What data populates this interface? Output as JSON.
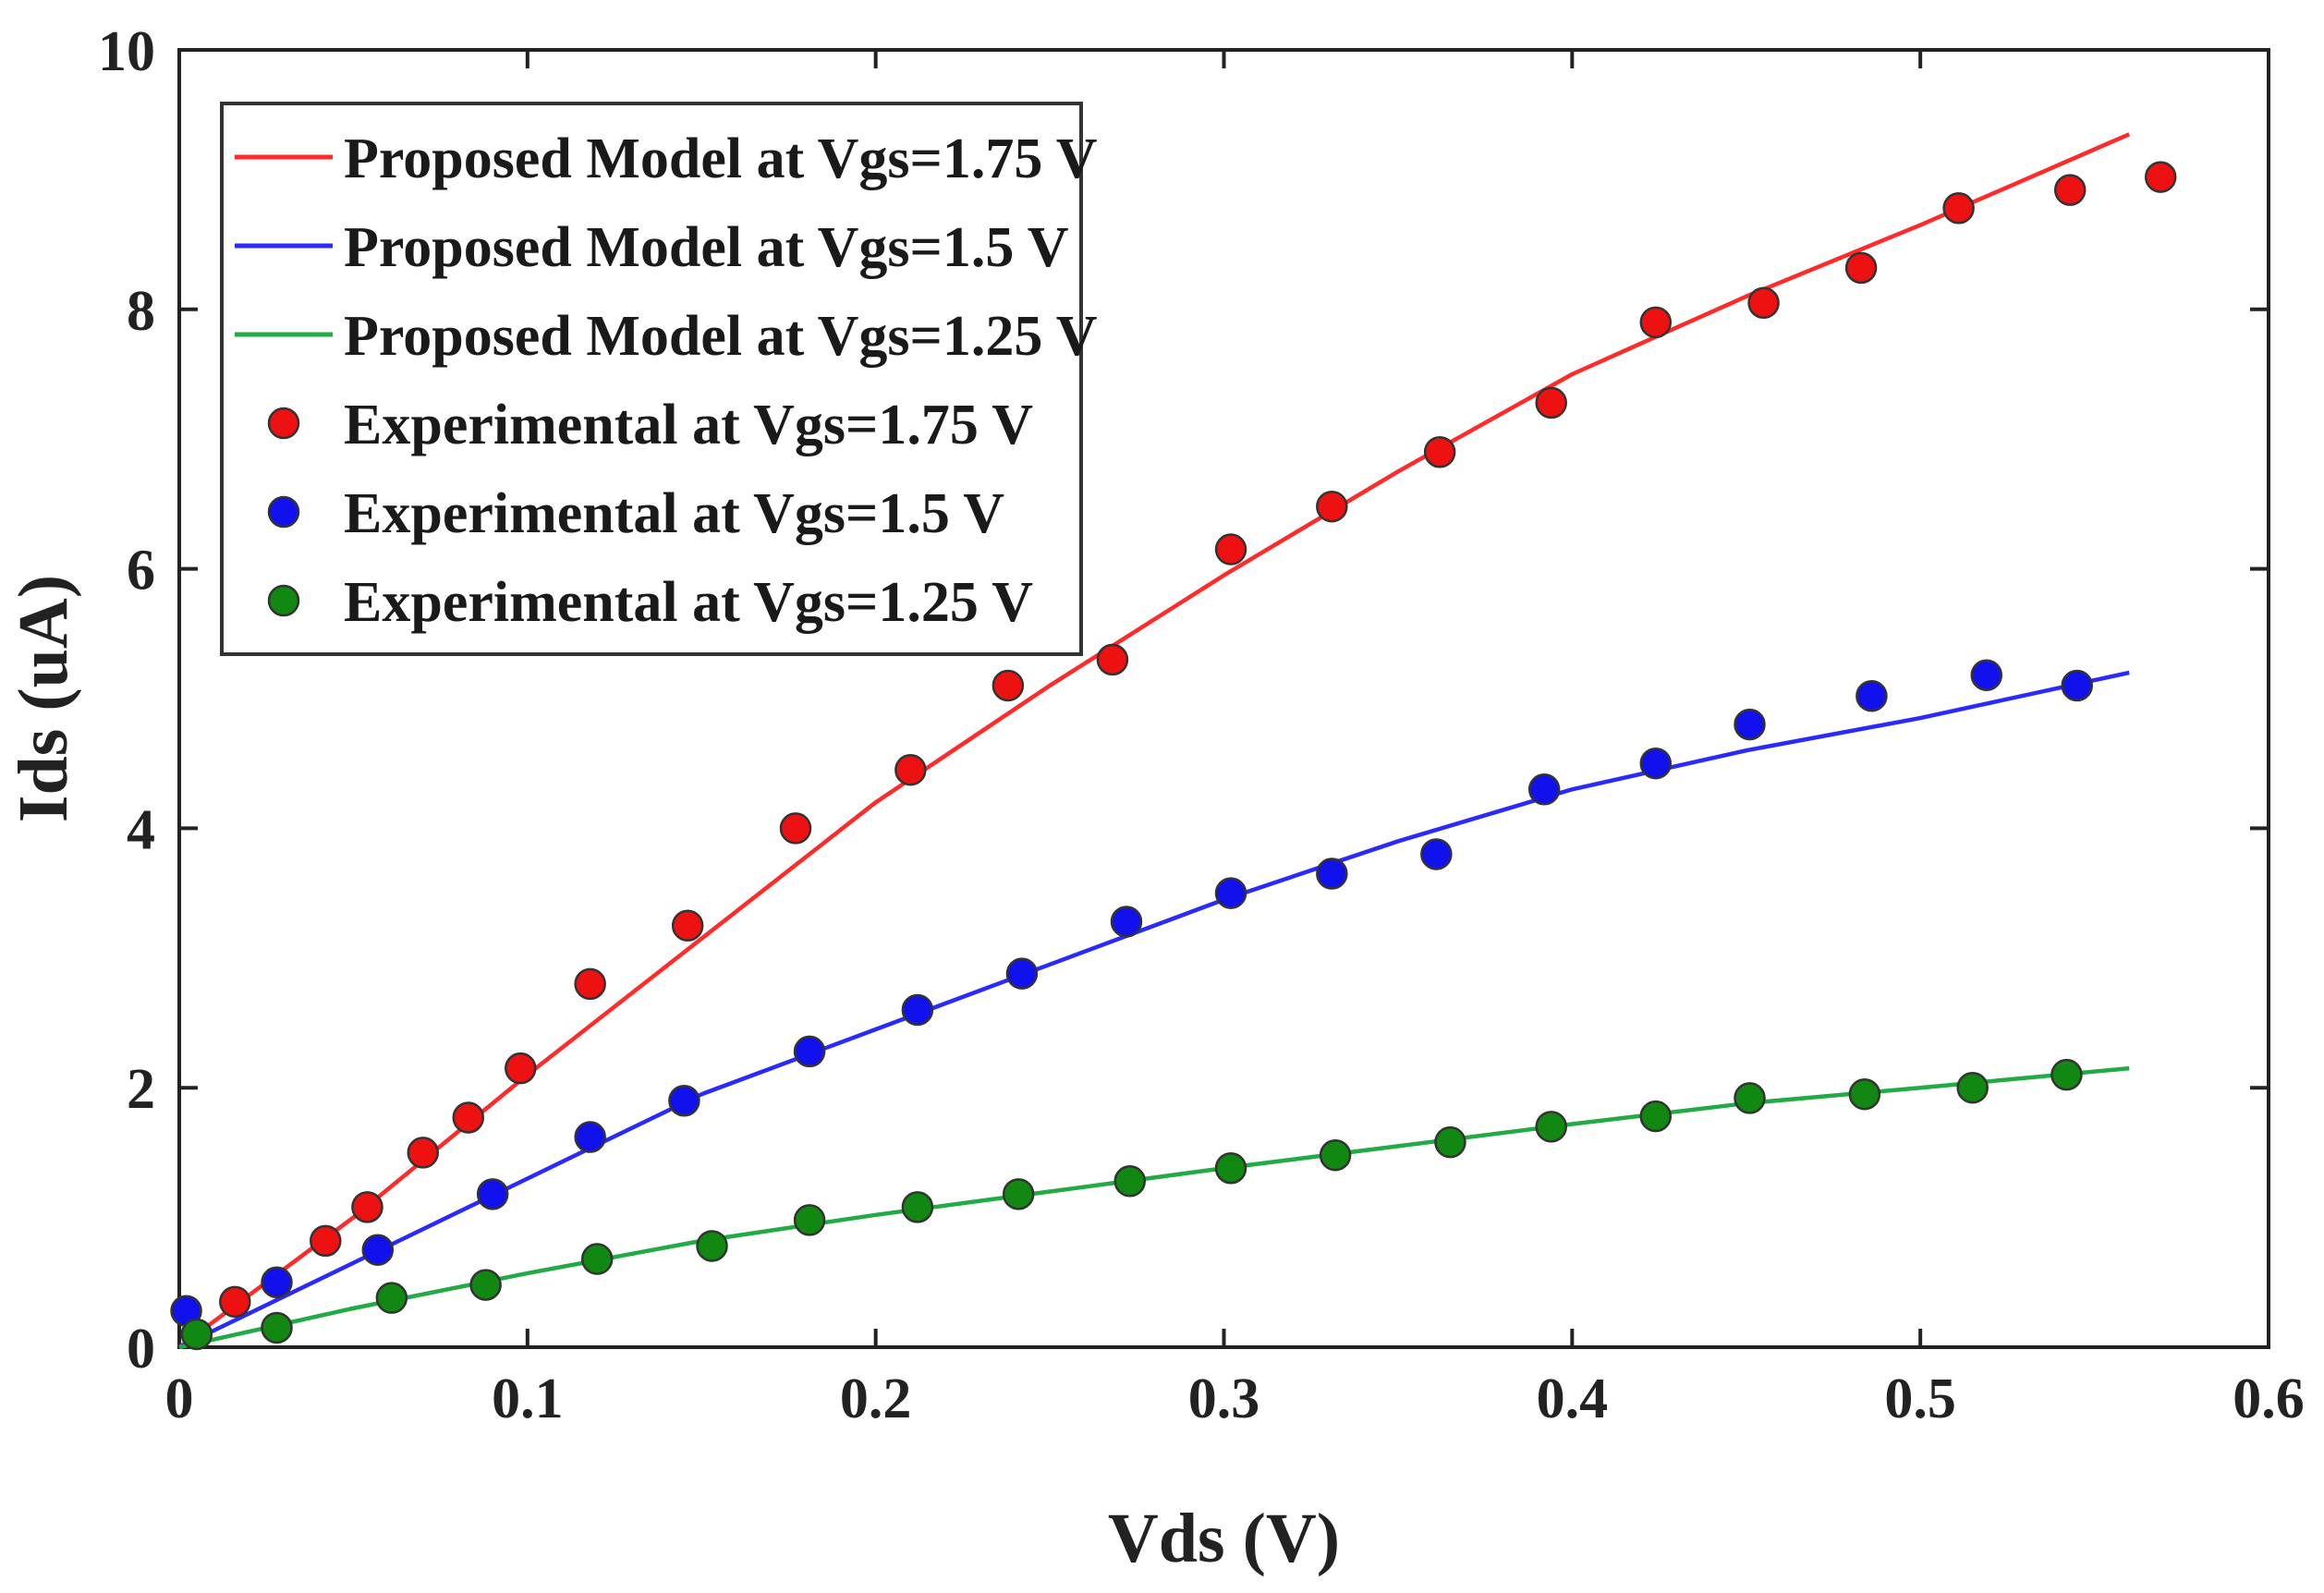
{
  "chart_data": {
    "type": "line",
    "title": "",
    "xlabel": "Vds (V)",
    "ylabel": "Ids (uA)",
    "xlim": [
      0,
      0.6
    ],
    "ylim": [
      0,
      10
    ],
    "xticks": [
      0,
      0.1,
      0.2,
      0.3,
      0.4,
      0.5,
      0.6
    ],
    "xtick_labels": [
      "0",
      "0.1",
      "0.2",
      "0.3",
      "0.4",
      "0.5",
      "0.6"
    ],
    "yticks": [
      0,
      2,
      4,
      6,
      8,
      10
    ],
    "ytick_labels": [
      "0",
      "2",
      "4",
      "6",
      "8",
      "10"
    ],
    "grid": false,
    "legend_position": "top-left",
    "series": [
      {
        "name": "Proposed Model at Vgs=1.75 V",
        "kind": "line",
        "color": "#ff2a2a",
        "x": [
          0,
          0.05,
          0.1,
          0.15,
          0.2,
          0.25,
          0.3,
          0.35,
          0.4,
          0.45,
          0.5,
          0.56
        ],
        "y": [
          0,
          1.0,
          2.1,
          3.15,
          4.2,
          5.1,
          5.95,
          6.75,
          7.5,
          8.1,
          8.65,
          9.35
        ]
      },
      {
        "name": "Proposed Model at Vgs=1.5 V",
        "kind": "line",
        "color": "#2a2aff",
        "x": [
          0,
          0.05,
          0.1,
          0.15,
          0.2,
          0.25,
          0.3,
          0.35,
          0.4,
          0.45,
          0.5,
          0.56
        ],
        "y": [
          0,
          0.65,
          1.3,
          1.95,
          2.45,
          2.95,
          3.45,
          3.9,
          4.3,
          4.6,
          4.85,
          5.2
        ]
      },
      {
        "name": "Proposed Model at Vgs=1.25 V",
        "kind": "line",
        "color": "#22aa44",
        "x": [
          0,
          0.05,
          0.1,
          0.15,
          0.2,
          0.25,
          0.3,
          0.35,
          0.4,
          0.45,
          0.5,
          0.56
        ],
        "y": [
          0,
          0.3,
          0.57,
          0.82,
          1.02,
          1.2,
          1.38,
          1.55,
          1.72,
          1.88,
          2.0,
          2.15
        ]
      },
      {
        "name": "Experimental at Vgs=1.75 V",
        "kind": "scatter",
        "color": "#ee1111",
        "x": [
          0.016,
          0.042,
          0.054,
          0.07,
          0.083,
          0.098,
          0.118,
          0.146,
          0.177,
          0.21,
          0.238,
          0.268,
          0.302,
          0.331,
          0.362,
          0.394,
          0.424,
          0.455,
          0.483,
          0.511,
          0.543,
          0.569
        ],
        "y": [
          0.35,
          0.82,
          1.08,
          1.5,
          1.77,
          2.15,
          2.8,
          3.25,
          4.0,
          4.45,
          5.1,
          5.3,
          6.15,
          6.48,
          6.9,
          7.28,
          7.9,
          8.05,
          8.32,
          8.78,
          8.92,
          9.02
        ]
      },
      {
        "name": "Experimental at Vgs=1.5 V",
        "kind": "scatter",
        "color": "#1111ee",
        "x": [
          0.002,
          0.028,
          0.057,
          0.09,
          0.118,
          0.145,
          0.181,
          0.212,
          0.242,
          0.272,
          0.302,
          0.331,
          0.361,
          0.392,
          0.424,
          0.451,
          0.486,
          0.519,
          0.545
        ],
        "y": [
          0.28,
          0.5,
          0.75,
          1.18,
          1.62,
          1.9,
          2.28,
          2.6,
          2.88,
          3.28,
          3.5,
          3.65,
          3.8,
          4.3,
          4.5,
          4.8,
          5.02,
          5.18,
          5.1
        ]
      },
      {
        "name": "Experimental at Vgs=1.25 V",
        "kind": "scatter",
        "color": "#118811",
        "x": [
          0.005,
          0.028,
          0.061,
          0.088,
          0.12,
          0.153,
          0.181,
          0.212,
          0.241,
          0.273,
          0.302,
          0.332,
          0.365,
          0.394,
          0.424,
          0.451,
          0.484,
          0.515,
          0.542
        ],
        "y": [
          0.1,
          0.15,
          0.38,
          0.48,
          0.68,
          0.78,
          0.98,
          1.08,
          1.18,
          1.28,
          1.38,
          1.48,
          1.58,
          1.7,
          1.78,
          1.92,
          1.95,
          2.0,
          2.1
        ]
      }
    ]
  }
}
